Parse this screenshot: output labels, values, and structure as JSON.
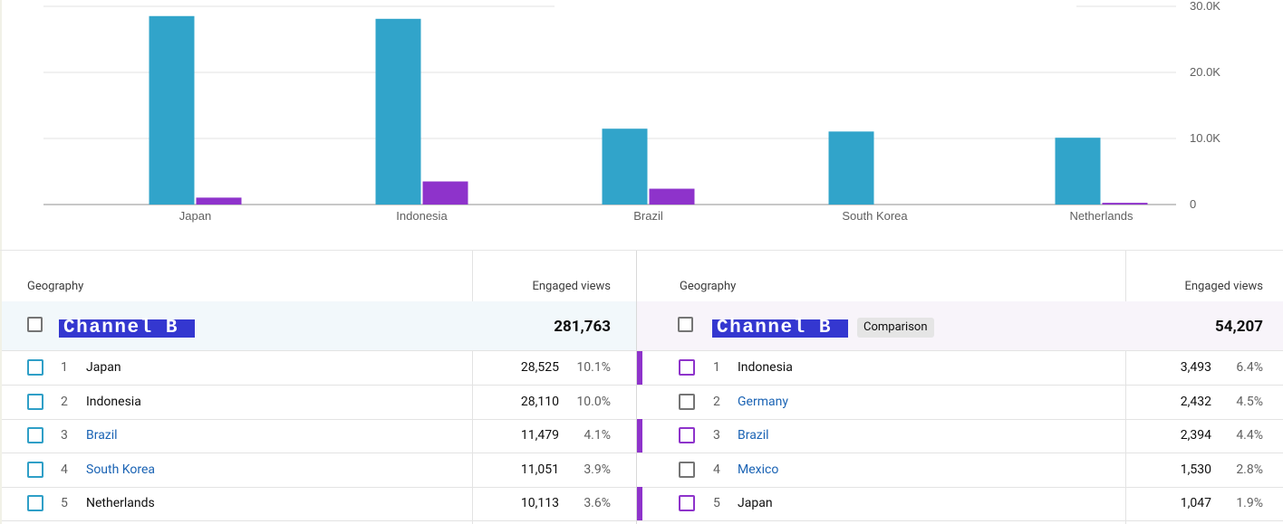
{
  "colors": {
    "primary_bar": "#31a4ca",
    "comparison_bar": "#8e33cb",
    "primary_checkbox": "#2f9fc7",
    "comparison_checkbox": "#8e33cb",
    "link": "#1a63b4",
    "highlight": "#3437d0"
  },
  "chart_data": {
    "type": "bar",
    "categories": [
      "Japan",
      "Indonesia",
      "Brazil",
      "South Korea",
      "Netherlands"
    ],
    "series": [
      {
        "values": [
          28525,
          28110,
          11479,
          11051,
          10113
        ]
      },
      {
        "values": [
          1047,
          3493,
          2394,
          0,
          260
        ]
      }
    ],
    "yticks": [
      "0",
      "10.0K",
      "20.0K",
      "30.0K"
    ],
    "ylim": [
      0,
      30000
    ],
    "grid": true
  },
  "left_table": {
    "col_geography": "Geography",
    "col_views": "Engaged views",
    "channel": "Channel B",
    "total": "281,763",
    "rows": [
      {
        "rank": "1",
        "name": "Japan",
        "value": "28,525",
        "pct": "10.1%",
        "link": false,
        "marker": true
      },
      {
        "rank": "2",
        "name": "Indonesia",
        "value": "28,110",
        "pct": "10.0%",
        "link": false,
        "marker": false
      },
      {
        "rank": "3",
        "name": "Brazil",
        "value": "11,479",
        "pct": "4.1%",
        "link": true,
        "marker": true
      },
      {
        "rank": "4",
        "name": "South Korea",
        "value": "11,051",
        "pct": "3.9%",
        "link": true,
        "marker": false
      },
      {
        "rank": "5",
        "name": "Netherlands",
        "value": "10,113",
        "pct": "3.6%",
        "link": false,
        "marker": true
      }
    ]
  },
  "right_table": {
    "col_geography": "Geography",
    "col_views": "Engaged views",
    "channel": "Channel B",
    "badge": "Comparison",
    "total": "54,207",
    "rows": [
      {
        "rank": "1",
        "name": "Indonesia",
        "value": "3,493",
        "pct": "6.4%",
        "link": false,
        "in_chart": true
      },
      {
        "rank": "2",
        "name": "Germany",
        "value": "2,432",
        "pct": "4.5%",
        "link": true,
        "in_chart": false
      },
      {
        "rank": "3",
        "name": "Brazil",
        "value": "2,394",
        "pct": "4.4%",
        "link": true,
        "in_chart": true
      },
      {
        "rank": "4",
        "name": "Mexico",
        "value": "1,530",
        "pct": "2.8%",
        "link": true,
        "in_chart": false
      },
      {
        "rank": "5",
        "name": "Japan",
        "value": "1,047",
        "pct": "1.9%",
        "link": false,
        "in_chart": true
      }
    ]
  }
}
